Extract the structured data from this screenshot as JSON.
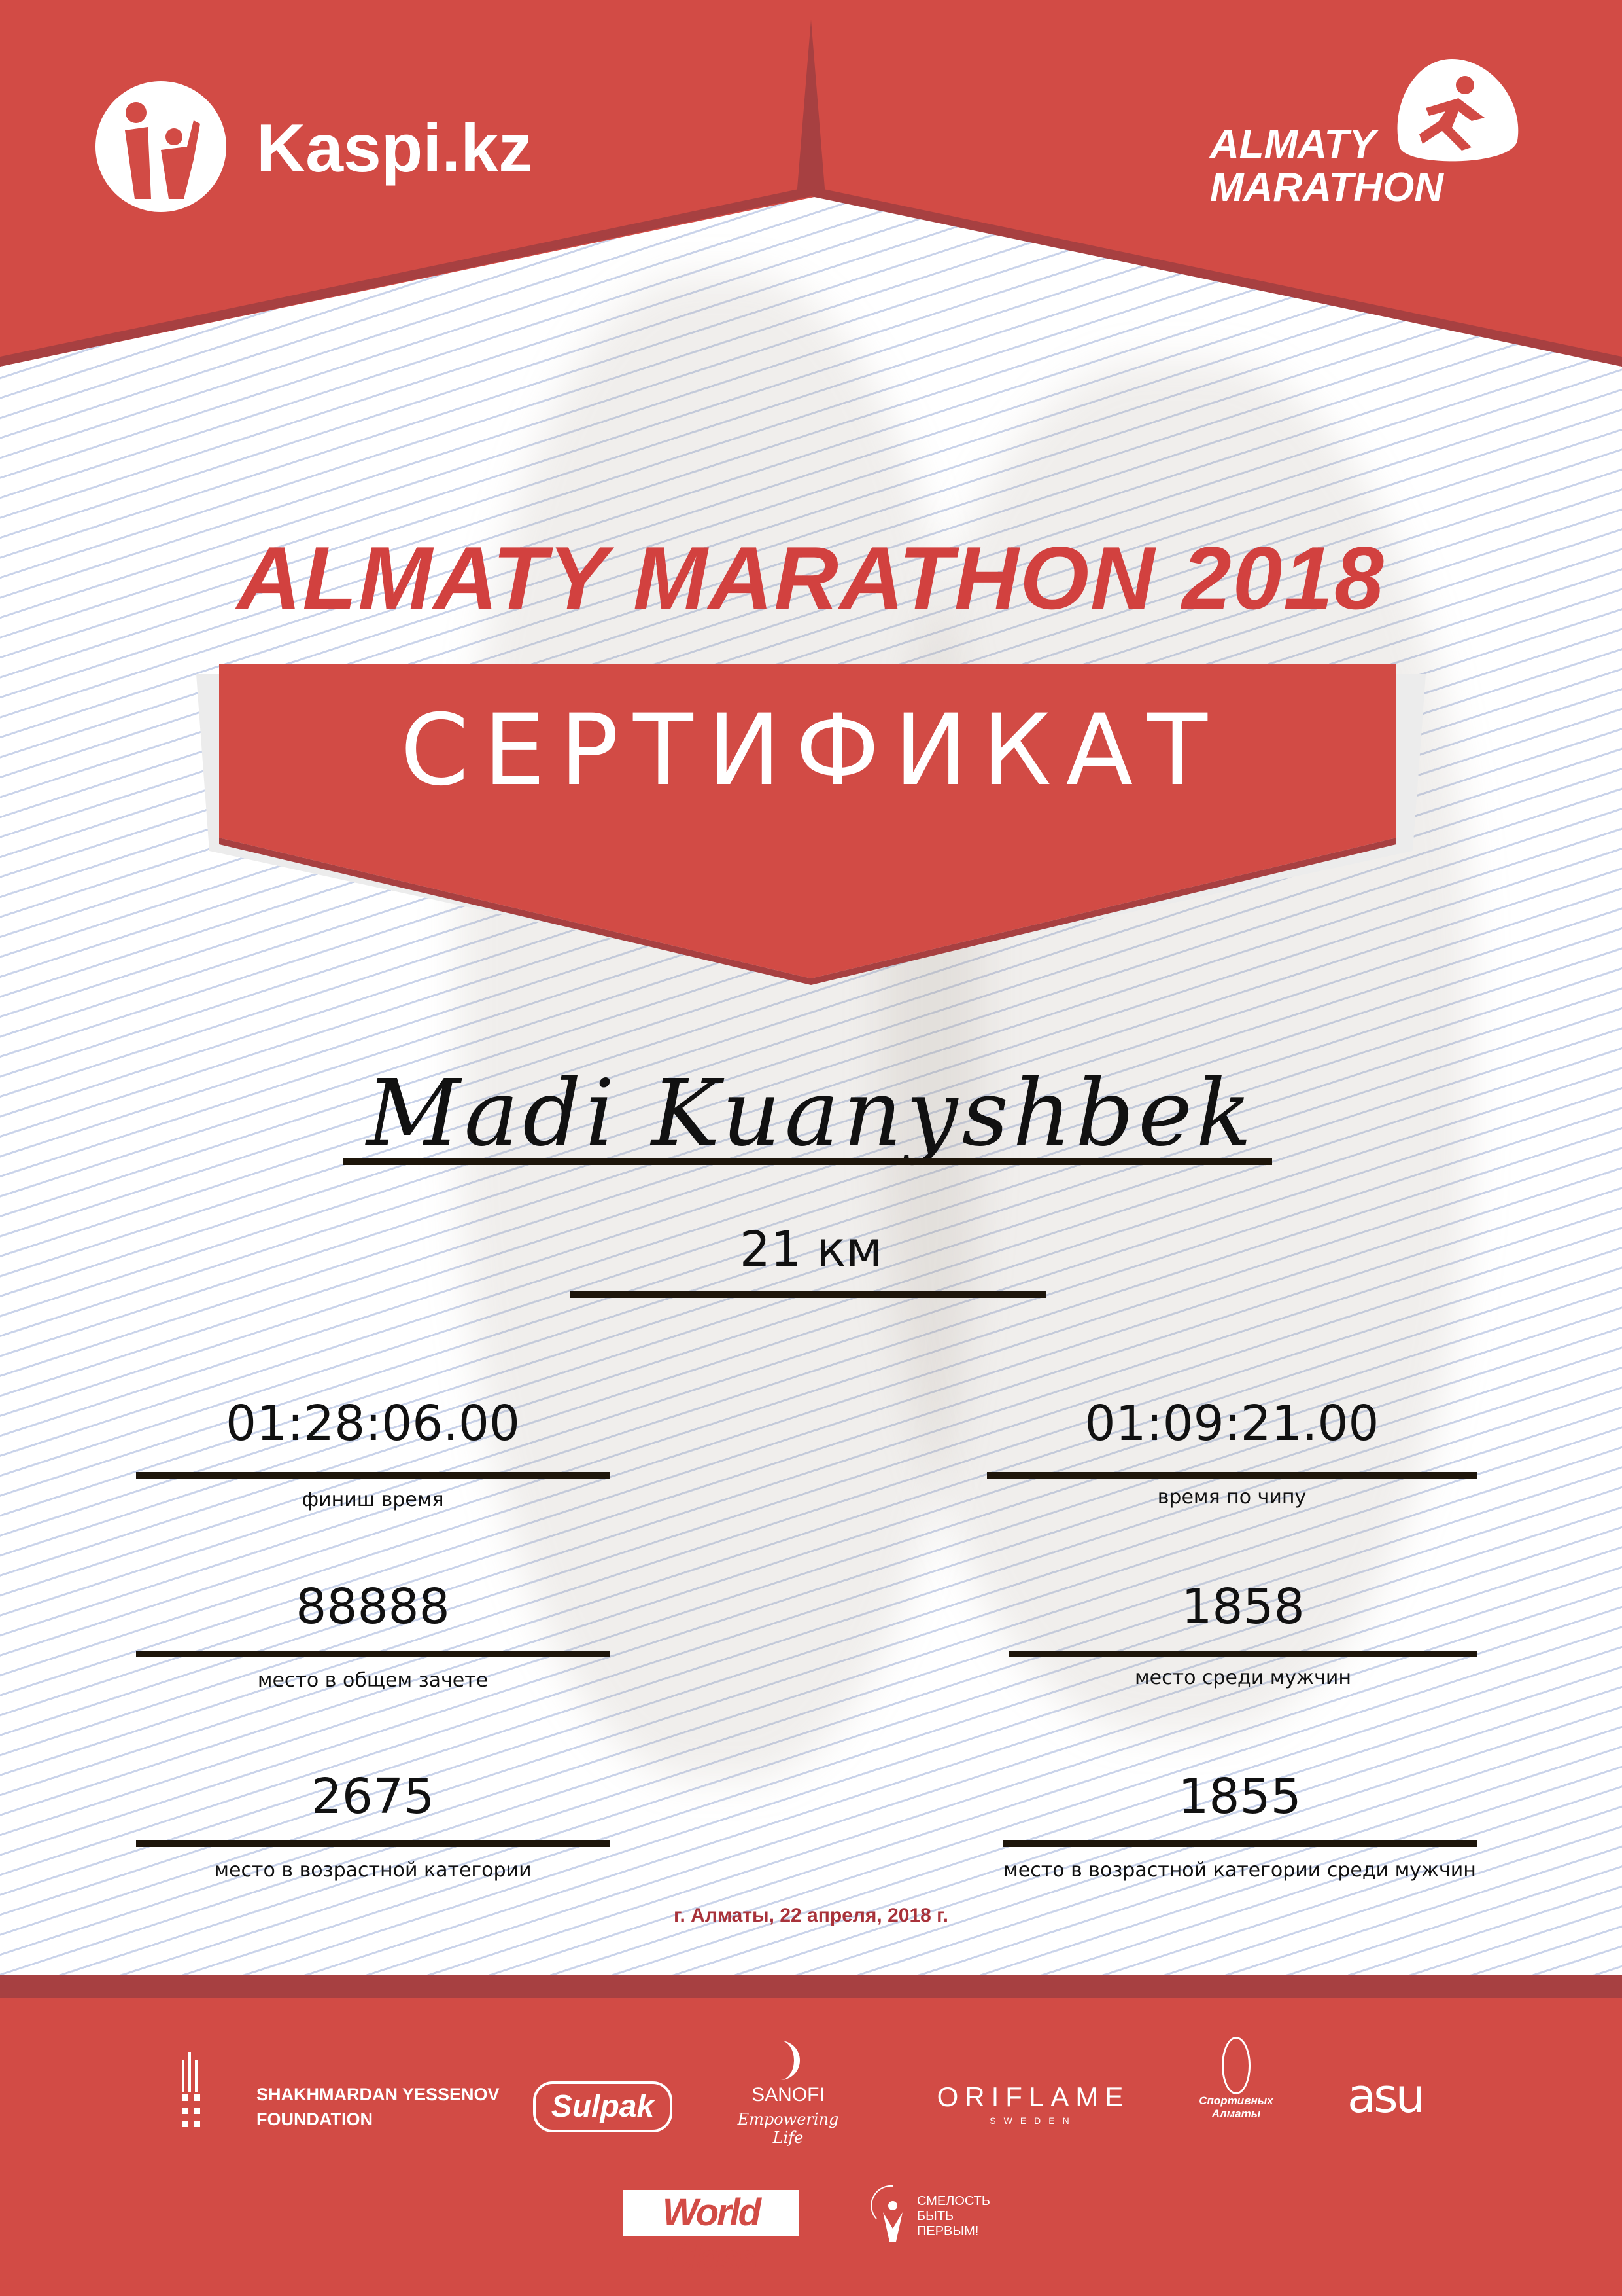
{
  "colors": {
    "brand_red": "#d24b45",
    "dark_red": "#a74041",
    "date_red": "#a8323a",
    "line": "#1e160b"
  },
  "header": {
    "kaspi_logo": "Kaspi.kz",
    "marathon_logo": [
      "ALMATY",
      "MARATHON"
    ]
  },
  "title": "ALMATY MARATHON 2018",
  "certificate_label": "СЕРТИФИКАТ",
  "participant": {
    "name": "Madi Kuanyshbek",
    "distance": "21 км"
  },
  "results": [
    {
      "value": "01:28:06.00",
      "label": "финиш время"
    },
    {
      "value": "01:09:21.00",
      "label": "время по чипу"
    },
    {
      "value": "88888",
      "label": "место в общем зачете"
    },
    {
      "value": "1858",
      "label": "место среди мужчин"
    },
    {
      "value": "2675",
      "label": "место в возрастной категории"
    },
    {
      "value": "1855",
      "label": "место в возрастной категории среди мужчин"
    }
  ],
  "date": "г. Алматы, 22 апреля, 2018 г.",
  "sponsors": {
    "yessenov": [
      "SHAKHMARDAN YESSENOV",
      "FOUNDATION"
    ],
    "sulpak": "Sulpak",
    "sanofi": [
      "SANOFI",
      "Empowering Life"
    ],
    "oriflame": [
      "ORIFLAME",
      "SWEDEN"
    ],
    "sport_almaty": [
      "Спортивных",
      "Алматы"
    ],
    "asu": "asu",
    "world_class": "World Class",
    "fund": [
      "СМЕЛОСТЬ",
      "БЫТЬ",
      "ПЕРВЫМ!"
    ]
  }
}
